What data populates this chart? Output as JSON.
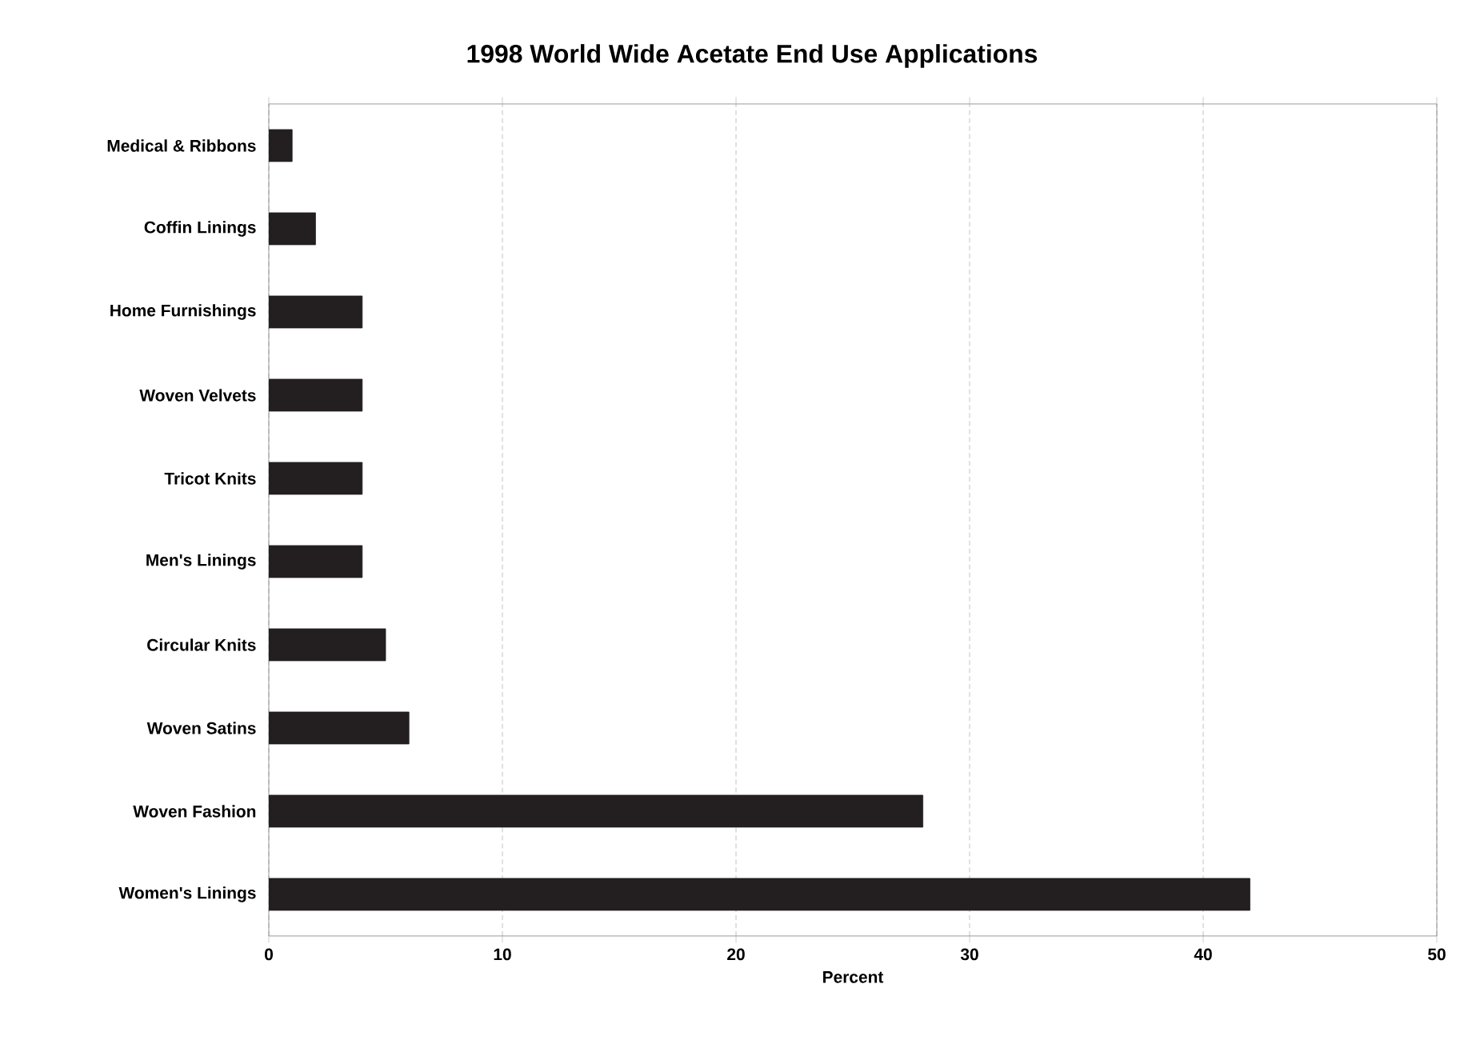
{
  "chart_data": {
    "type": "bar",
    "orientation": "horizontal",
    "title": "1998 World Wide Acetate End Use Applications",
    "xlabel": "Percent",
    "categories": [
      "Medical & Ribbons",
      "Coffin Linings",
      "Home Furnishings",
      "Woven Velvets",
      "Tricot Knits",
      "Men's Linings",
      "Circular Knits",
      "Woven Satins",
      "Woven Fashion",
      "Women's Linings"
    ],
    "values": [
      1,
      2,
      4,
      4,
      4,
      4,
      5,
      6,
      28,
      42
    ],
    "color": "#231f20",
    "xlim": [
      0,
      50
    ],
    "xticks": [
      0,
      10,
      20,
      30,
      40,
      50
    ],
    "grid": "x"
  }
}
